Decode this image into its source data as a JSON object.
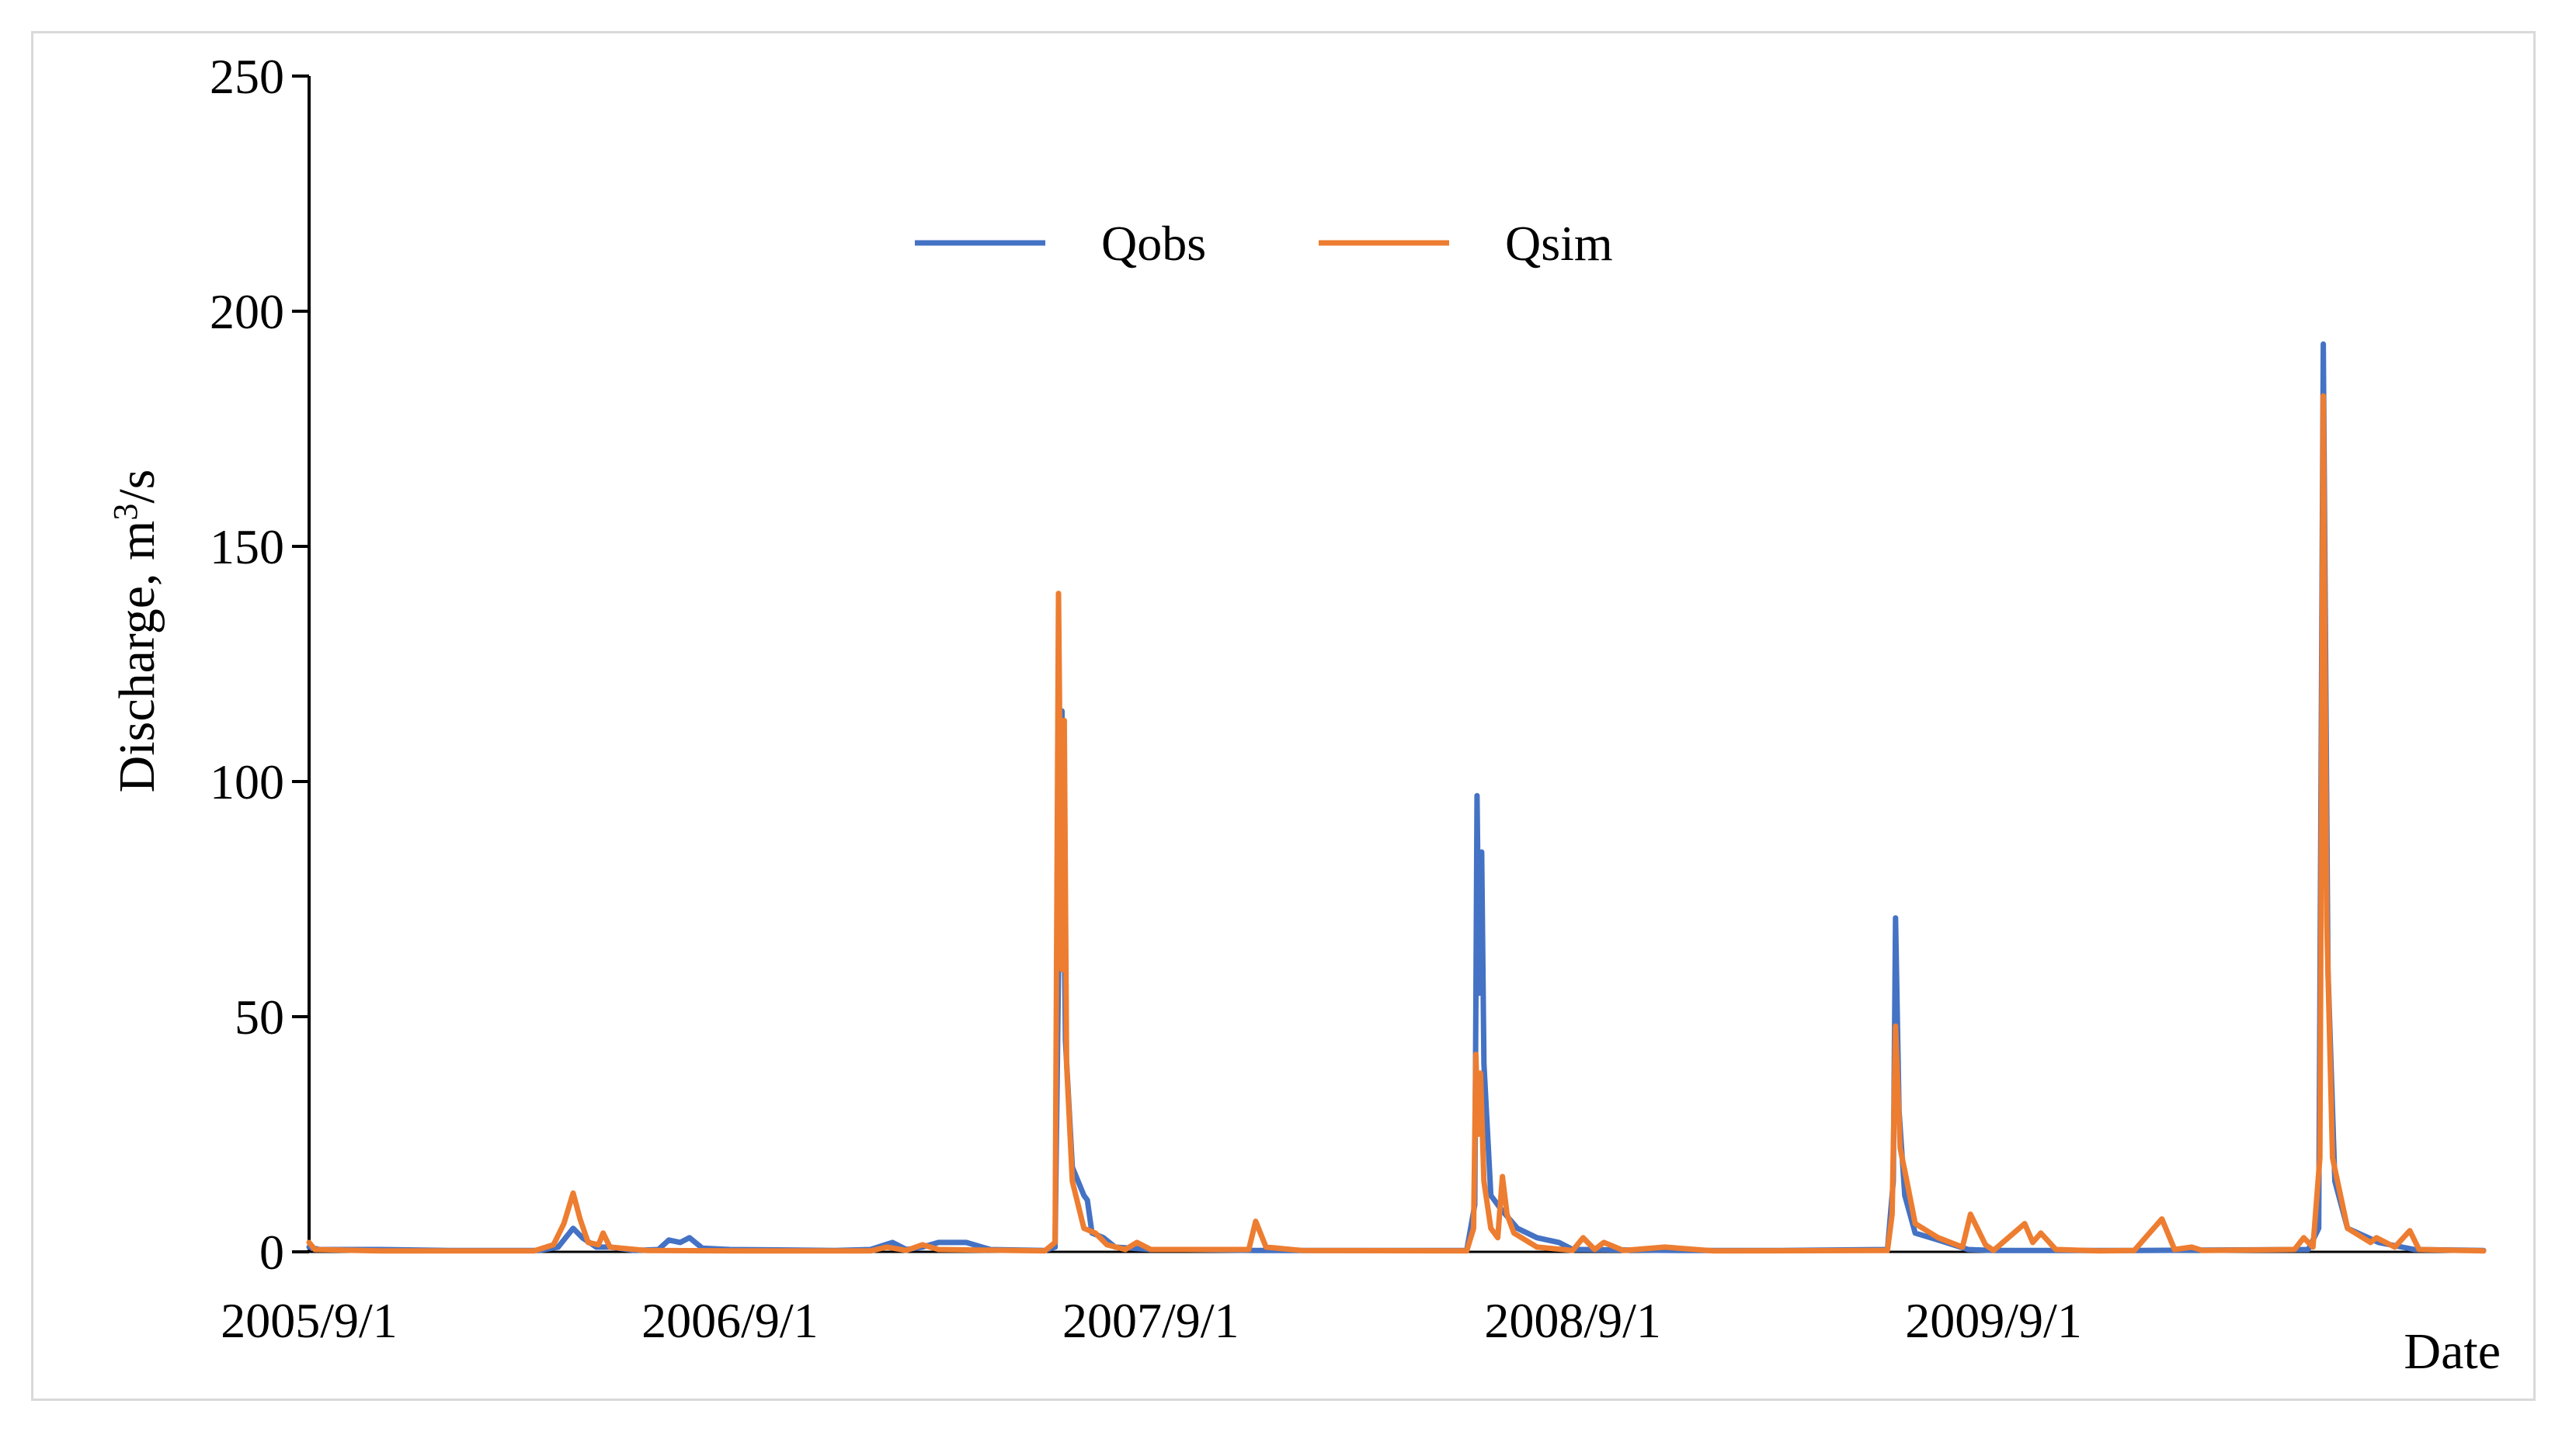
{
  "chart_data": {
    "type": "line",
    "title": "",
    "xlabel": "Date",
    "ylabel": "Discharge, m³/s",
    "ylabel_parts": {
      "prefix": "Discharge, m",
      "sup": "3",
      "suffix": "/s"
    },
    "x_range": [
      "2005/9/1",
      "2010/10/31"
    ],
    "ylim": [
      0,
      250
    ],
    "y_ticks": [
      0,
      50,
      100,
      150,
      200,
      250
    ],
    "x_ticks": [
      "2005/9/1",
      "2006/9/1",
      "2007/9/1",
      "2008/9/1",
      "2009/9/1"
    ],
    "grid": false,
    "legend_position": "top-center",
    "series": [
      {
        "name": "Qobs",
        "color": "#4472c4",
        "points": [
          [
            "2005/9/1",
            1
          ],
          [
            "2005/9/10",
            0.5
          ],
          [
            "2005/11/1",
            0.5
          ],
          [
            "2006/1/1",
            0.3
          ],
          [
            "2006/3/20",
            0.3
          ],
          [
            "2006/4/5",
            1
          ],
          [
            "2006/4/18",
            5
          ],
          [
            "2006/4/26",
            3
          ],
          [
            "2006/5/8",
            1
          ],
          [
            "2006/5/20",
            1
          ],
          [
            "2006/6/10",
            0.3
          ],
          [
            "2006/7/1",
            0.5
          ],
          [
            "2006/7/10",
            2.5
          ],
          [
            "2006/7/20",
            2
          ],
          [
            "2006/7/28",
            3
          ],
          [
            "2006/8/8",
            0.8
          ],
          [
            "2006/9/1",
            0.5
          ],
          [
            "2006/12/1",
            0.3
          ],
          [
            "2007/1/1",
            0.5
          ],
          [
            "2007/1/20",
            2
          ],
          [
            "2007/2/1",
            0.5
          ],
          [
            "2007/2/15",
            1
          ],
          [
            "2007/3/1",
            2
          ],
          [
            "2007/3/25",
            2
          ],
          [
            "2007/4/15",
            0.5
          ],
          [
            "2007/6/1",
            0.3
          ],
          [
            "2007/6/10",
            1
          ],
          [
            "2007/6/14",
            80
          ],
          [
            "2007/6/16",
            115
          ],
          [
            "2007/6/19",
            45
          ],
          [
            "2007/6/25",
            18
          ],
          [
            "2007/7/5",
            12
          ],
          [
            "2007/7/8",
            11
          ],
          [
            "2007/7/12",
            4
          ],
          [
            "2007/7/22",
            3
          ],
          [
            "2007/8/1",
            1
          ],
          [
            "2007/9/1",
            0.5
          ],
          [
            "2007/10/1",
            0.5
          ],
          [
            "2007/12/1",
            0.3
          ],
          [
            "2008/3/1",
            0.3
          ],
          [
            "2008/6/1",
            0.3
          ],
          [
            "2008/6/8",
            10
          ],
          [
            "2008/6/10",
            97
          ],
          [
            "2008/6/12",
            55
          ],
          [
            "2008/6/14",
            85
          ],
          [
            "2008/6/16",
            40
          ],
          [
            "2008/6/22",
            12
          ],
          [
            "2008/7/1",
            9
          ],
          [
            "2008/7/15",
            5
          ],
          [
            "2008/8/1",
            3
          ],
          [
            "2008/8/20",
            2
          ],
          [
            "2008/9/1",
            0.5
          ],
          [
            "2008/12/1",
            0.3
          ],
          [
            "2009/3/1",
            0.3
          ],
          [
            "2009/6/1",
            0.5
          ],
          [
            "2009/6/6",
            15
          ],
          [
            "2009/6/8",
            71
          ],
          [
            "2009/6/11",
            30
          ],
          [
            "2009/6/16",
            12
          ],
          [
            "2009/6/25",
            4
          ],
          [
            "2009/7/15",
            2.5
          ],
          [
            "2009/8/10",
            0.5
          ],
          [
            "2009/9/1",
            0.3
          ],
          [
            "2010/1/1",
            0.3
          ],
          [
            "2010/6/1",
            0.5
          ],
          [
            "2010/6/10",
            5
          ],
          [
            "2010/6/14",
            193
          ],
          [
            "2010/6/18",
            60
          ],
          [
            "2010/6/24",
            15
          ],
          [
            "2010/7/5",
            5
          ],
          [
            "2010/8/1",
            2
          ],
          [
            "2010/9/1",
            0.5
          ],
          [
            "2010/10/31",
            0.3
          ]
        ]
      },
      {
        "name": "Qsim",
        "color": "#ed7d31",
        "points": [
          [
            "2005/9/1",
            2
          ],
          [
            "2005/9/6",
            0.5
          ],
          [
            "2005/11/1",
            0.2
          ],
          [
            "2006/3/15",
            0.2
          ],
          [
            "2006/4/1",
            1.5
          ],
          [
            "2006/4/10",
            6
          ],
          [
            "2006/4/18",
            12.5
          ],
          [
            "2006/4/24",
            7
          ],
          [
            "2006/5/1",
            2
          ],
          [
            "2006/5/10",
            1.5
          ],
          [
            "2006/5/14",
            4
          ],
          [
            "2006/5/20",
            1
          ],
          [
            "2006/6/20",
            0.3
          ],
          [
            "2006/9/1",
            0.2
          ],
          [
            "2007/1/1",
            0.2
          ],
          [
            "2007/1/15",
            1
          ],
          [
            "2007/2/1",
            0.3
          ],
          [
            "2007/2/15",
            1.5
          ],
          [
            "2007/3/1",
            0.5
          ],
          [
            "2007/6/1",
            0.2
          ],
          [
            "2007/6/10",
            2
          ],
          [
            "2007/6/13",
            140
          ],
          [
            "2007/6/16",
            60
          ],
          [
            "2007/6/18",
            113
          ],
          [
            "2007/6/20",
            40
          ],
          [
            "2007/6/25",
            15
          ],
          [
            "2007/7/5",
            5
          ],
          [
            "2007/7/15",
            4
          ],
          [
            "2007/7/25",
            1.5
          ],
          [
            "2007/8/10",
            0.5
          ],
          [
            "2007/8/20",
            2
          ],
          [
            "2007/9/1",
            0.5
          ],
          [
            "2007/11/25",
            0.5
          ],
          [
            "2007/12/1",
            6.5
          ],
          [
            "2007/12/10",
            1
          ],
          [
            "2008/1/10",
            0.3
          ],
          [
            "2008/6/1",
            0.2
          ],
          [
            "2008/6/7",
            5
          ],
          [
            "2008/6/9",
            42
          ],
          [
            "2008/6/11",
            25
          ],
          [
            "2008/6/13",
            38
          ],
          [
            "2008/6/16",
            15
          ],
          [
            "2008/6/22",
            5
          ],
          [
            "2008/6/28",
            3
          ],
          [
            "2008/7/2",
            16
          ],
          [
            "2008/7/6",
            8
          ],
          [
            "2008/7/12",
            4
          ],
          [
            "2008/8/1",
            1
          ],
          [
            "2008/9/1",
            0.3
          ],
          [
            "2008/9/10",
            3
          ],
          [
            "2008/9/20",
            0.5
          ],
          [
            "2008/9/28",
            2
          ],
          [
            "2008/10/15",
            0.3
          ],
          [
            "2008/11/20",
            1
          ],
          [
            "2009/1/1",
            0.2
          ],
          [
            "2009/6/1",
            0.3
          ],
          [
            "2009/6/5",
            8
          ],
          [
            "2009/6/8",
            48
          ],
          [
            "2009/6/12",
            22
          ],
          [
            "2009/6/17",
            16
          ],
          [
            "2009/6/25",
            6
          ],
          [
            "2009/7/15",
            3
          ],
          [
            "2009/8/5",
            1
          ],
          [
            "2009/8/12",
            8
          ],
          [
            "2009/8/25",
            1.5
          ],
          [
            "2009/9/1",
            0.3
          ],
          [
            "2009/9/28",
            6
          ],
          [
            "2009/10/5",
            2
          ],
          [
            "2009/10/12",
            4
          ],
          [
            "2009/10/25",
            0.5
          ],
          [
            "2009/12/1",
            0.2
          ],
          [
            "2010/1/1",
            0.3
          ],
          [
            "2010/1/25",
            7
          ],
          [
            "2010/2/5",
            0.5
          ],
          [
            "2010/2/20",
            1
          ],
          [
            "2010/3/1",
            0.3
          ],
          [
            "2010/5/20",
            0.5
          ],
          [
            "2010/5/28",
            3
          ],
          [
            "2010/6/5",
            1
          ],
          [
            "2010/6/11",
            20
          ],
          [
            "2010/6/14",
            182
          ],
          [
            "2010/6/17",
            70
          ],
          [
            "2010/6/22",
            20
          ],
          [
            "2010/7/5",
            5
          ],
          [
            "2010/7/25",
            2
          ],
          [
            "2010/7/30",
            3
          ],
          [
            "2010/8/15",
            1
          ],
          [
            "2010/8/28",
            4.5
          ],
          [
            "2010/9/5",
            0.5
          ],
          [
            "2010/10/31",
            0.2
          ]
        ]
      }
    ]
  }
}
